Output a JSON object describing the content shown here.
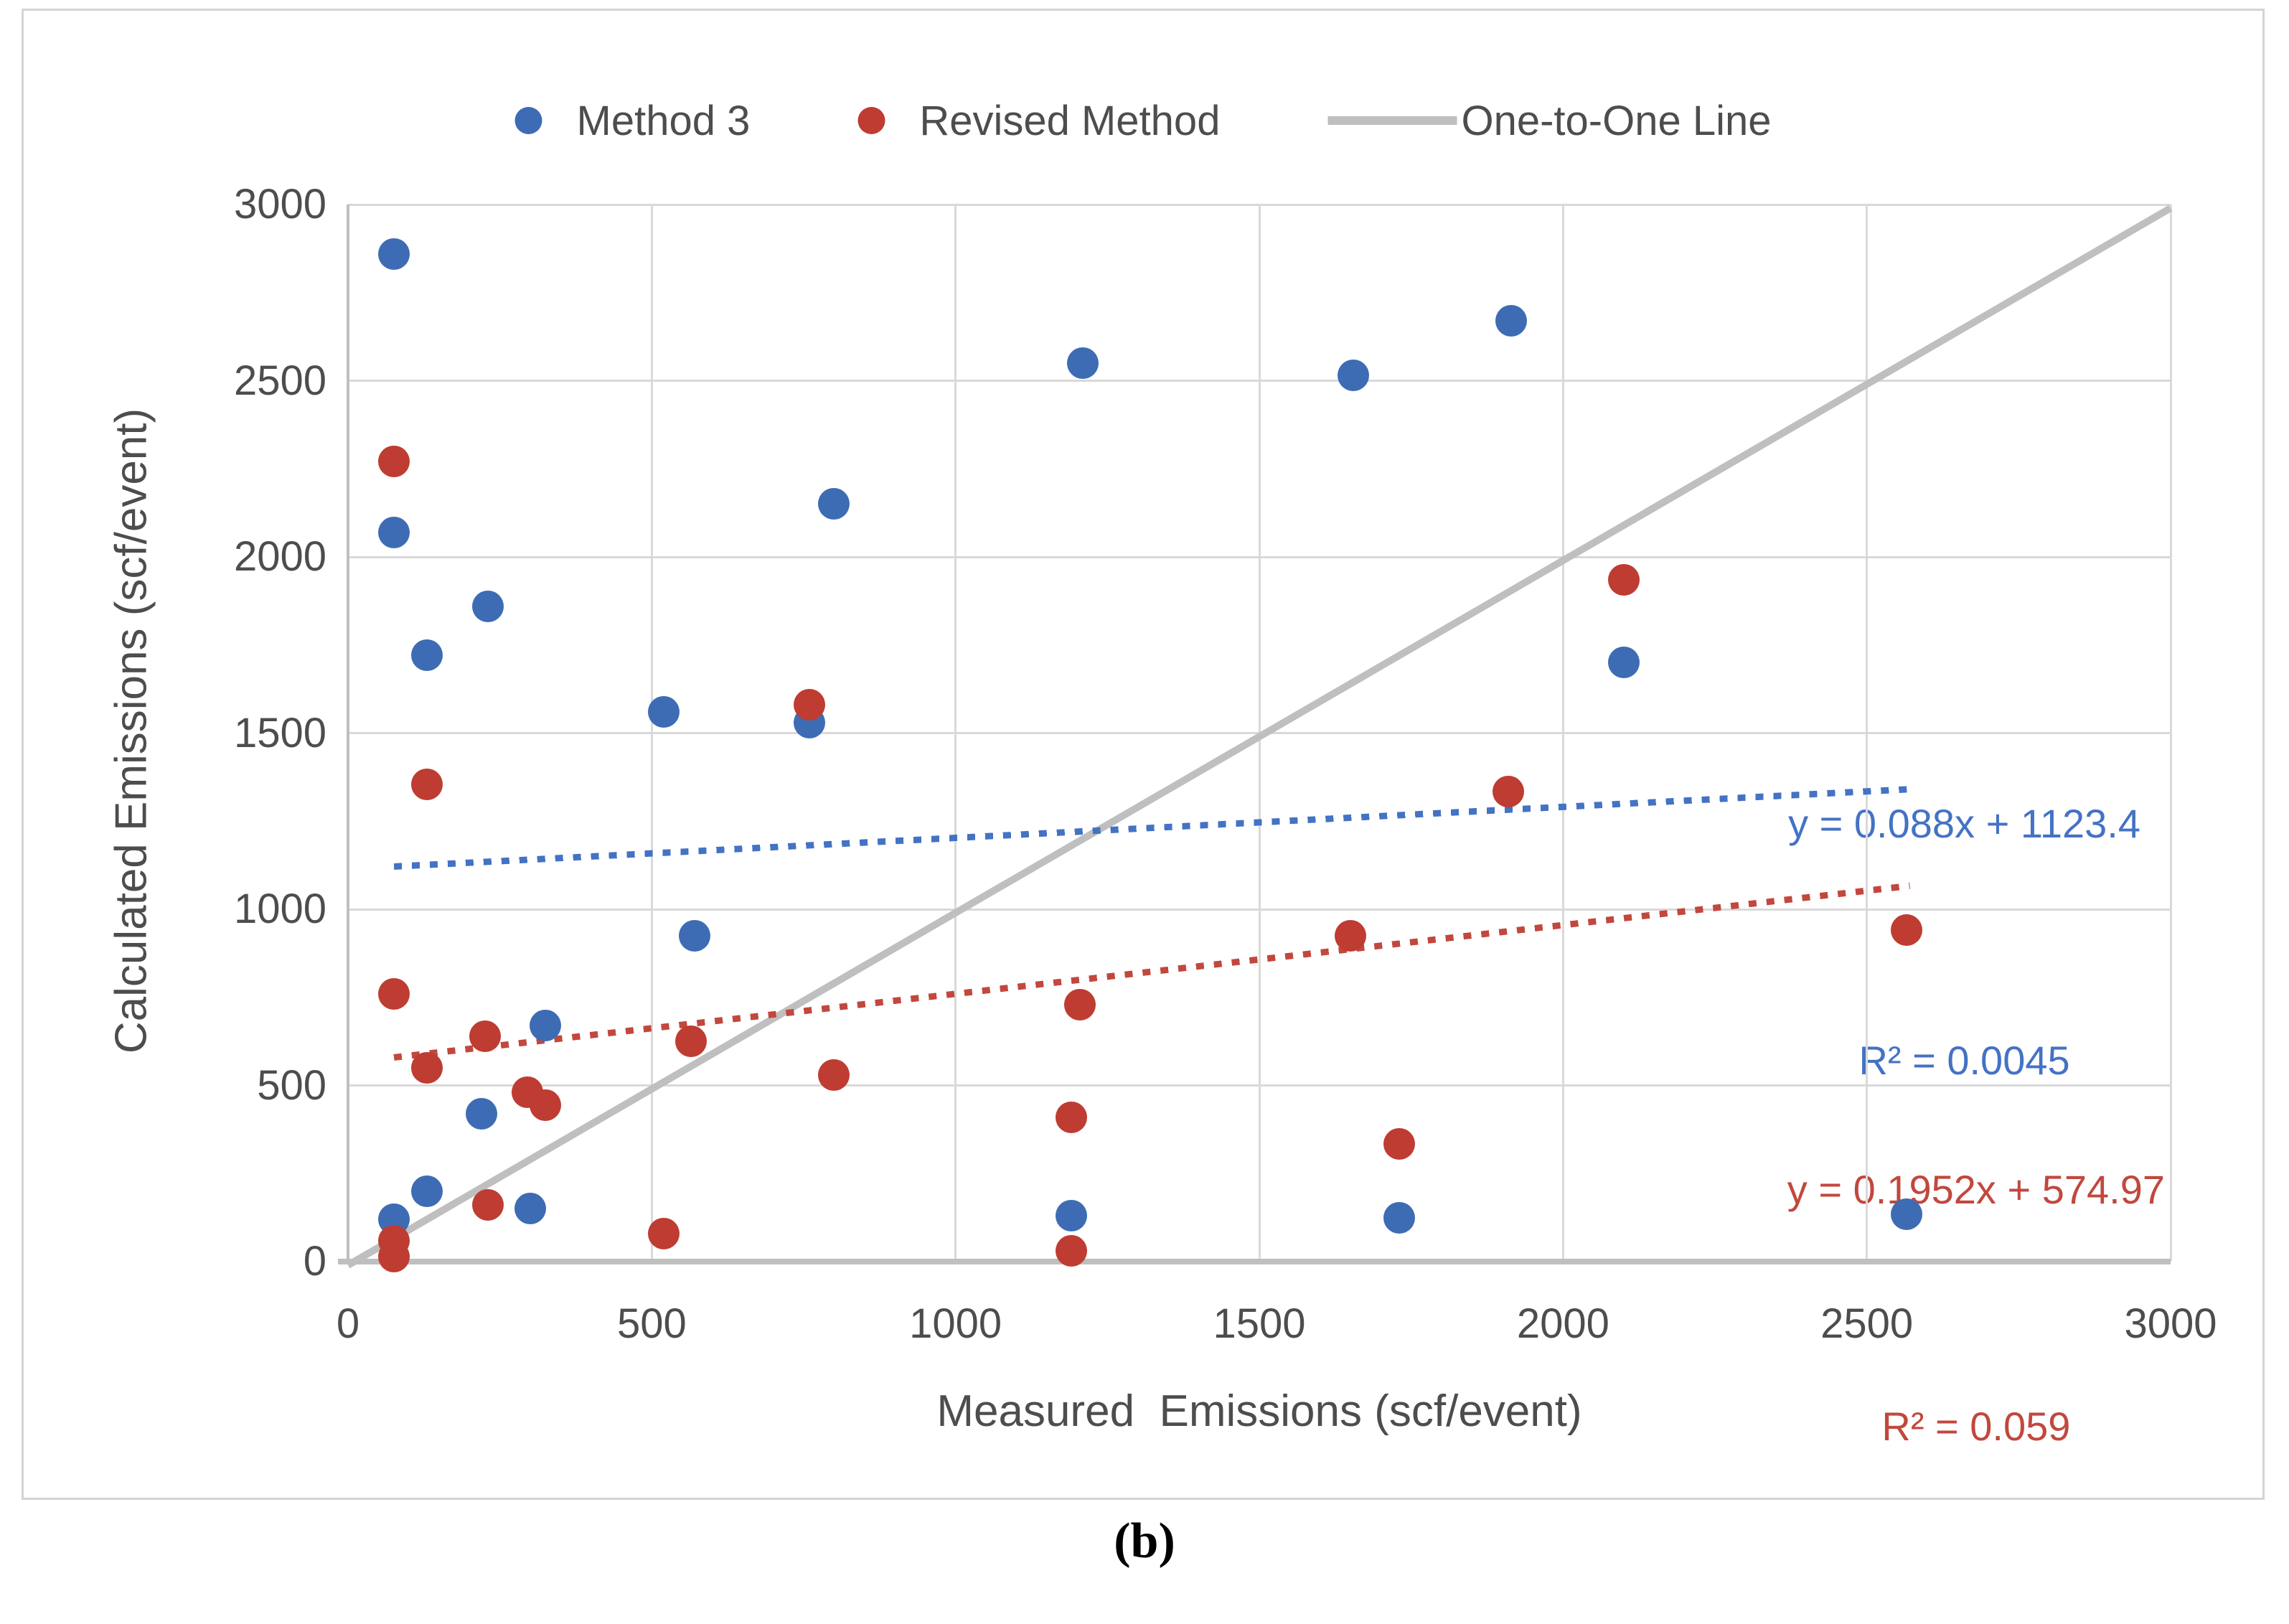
{
  "figure": {
    "caption": "(b)",
    "legend": [
      {
        "label": "Method 3",
        "marker": "dot",
        "color": "#3D6CB4"
      },
      {
        "label": "Revised Method",
        "marker": "dot",
        "color": "#BE3C32"
      },
      {
        "label": "One-to-One Line",
        "marker": "line",
        "color": "#BFBFBF"
      }
    ]
  },
  "chart_data": {
    "type": "scatter",
    "title": "",
    "xlabel": "Measured  Emissions (scf/event)",
    "ylabel": "Calculated Emissions (scf/event)",
    "xlim": [
      0,
      3000
    ],
    "ylim": [
      0,
      3000
    ],
    "x_ticks": [
      0,
      500,
      1000,
      1500,
      2000,
      2500,
      3000
    ],
    "y_ticks": [
      0,
      500,
      1000,
      1500,
      2000,
      2500,
      3000
    ],
    "grid": true,
    "legend_position": "top",
    "colors": {
      "method3": "#3D6CB4",
      "revised_method": "#BE3C32",
      "one_to_one": "#BFBFBF",
      "gridline": "#D9D9D9",
      "axis": "#BFBFBF",
      "tick_text": "#4D4D4D"
    },
    "series": [
      {
        "name": "Method 3",
        "color": "#3D6CB4",
        "points": [
          [
            75,
            2860
          ],
          [
            75,
            2070
          ],
          [
            130,
            1720
          ],
          [
            230,
            1860
          ],
          [
            520,
            1560
          ],
          [
            760,
            1530
          ],
          [
            800,
            2150
          ],
          [
            1210,
            2550
          ],
          [
            1655,
            2515
          ],
          [
            1915,
            2670
          ],
          [
            2100,
            1700
          ],
          [
            570,
            925
          ],
          [
            325,
            670
          ],
          [
            220,
            420
          ],
          [
            130,
            200
          ],
          [
            300,
            150
          ],
          [
            75,
            120
          ],
          [
            1190,
            130
          ],
          [
            1730,
            125
          ],
          [
            2565,
            135
          ]
        ]
      },
      {
        "name": "Revised Method",
        "color": "#BE3C32",
        "points": [
          [
            75,
            2270
          ],
          [
            75,
            760
          ],
          [
            75,
            60
          ],
          [
            75,
            15
          ],
          [
            130,
            1355
          ],
          [
            130,
            550
          ],
          [
            225,
            640
          ],
          [
            230,
            160
          ],
          [
            295,
            480
          ],
          [
            325,
            445
          ],
          [
            520,
            80
          ],
          [
            565,
            625
          ],
          [
            760,
            1580
          ],
          [
            800,
            530
          ],
          [
            1190,
            410
          ],
          [
            1190,
            30
          ],
          [
            1205,
            730
          ],
          [
            1650,
            925
          ],
          [
            1730,
            335
          ],
          [
            1910,
            1335
          ],
          [
            2100,
            1935
          ],
          [
            2565,
            940
          ]
        ]
      }
    ],
    "reference_line": {
      "name": "One-to-One Line",
      "color": "#BFBFBF",
      "from": [
        0,
        0
      ],
      "to": [
        3000,
        3000
      ]
    },
    "trendlines": [
      {
        "series": "Method 3",
        "color": "#4472C4",
        "slope": 0.088,
        "intercept": 1123.4,
        "x_range": [
          75,
          2570
        ],
        "equation": "y = 0.088x + 1123.4",
        "r_squared": "R² = 0.0045"
      },
      {
        "series": "Revised Method",
        "color": "#C2473D",
        "slope": 0.1952,
        "intercept": 574.97,
        "x_range": [
          75,
          2570
        ],
        "equation": "y = 0.1952x + 574.97",
        "r_squared": "R² = 0.059"
      }
    ]
  }
}
